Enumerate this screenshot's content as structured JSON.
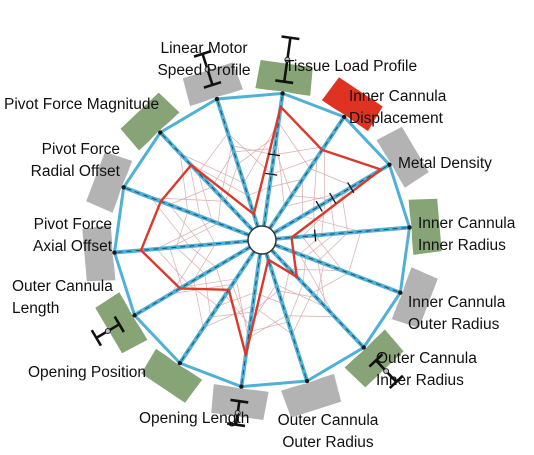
{
  "parameters": [
    {
      "id": "tissue-load-profile",
      "lines": [
        "Tissue Load Profile"
      ],
      "tab_color": "green"
    },
    {
      "id": "inner-cannula-displacement",
      "lines": [
        "Inner Cannula",
        "Displacement"
      ],
      "tab_color": "red"
    },
    {
      "id": "metal-density",
      "lines": [
        "Metal Density"
      ],
      "tab_color": "grey"
    },
    {
      "id": "inner-cannula-inner-radius",
      "lines": [
        "Inner Cannula",
        "Inner Radius"
      ],
      "tab_color": "green"
    },
    {
      "id": "inner-cannula-outer-radius",
      "lines": [
        "Inner Cannula",
        "Outer Radius"
      ],
      "tab_color": "grey"
    },
    {
      "id": "outer-cannula-inner-radius",
      "lines": [
        "Outer Cannula",
        "Inner Radius"
      ],
      "tab_color": "green"
    },
    {
      "id": "outer-cannula-outer-radius",
      "lines": [
        "Outer Cannula",
        "Outer Radius"
      ],
      "tab_color": "grey"
    },
    {
      "id": "opening-length",
      "lines": [
        "Opening Length"
      ],
      "tab_color": "grey"
    },
    {
      "id": "opening-position",
      "lines": [
        "Opening Position"
      ],
      "tab_color": "green"
    },
    {
      "id": "outer-cannula-length",
      "lines": [
        "Outer Cannula",
        "Length"
      ],
      "tab_color": "green"
    },
    {
      "id": "pivot-force-axial-offset",
      "lines": [
        "Pivot Force",
        "Axial Offset"
      ],
      "tab_color": "grey"
    },
    {
      "id": "pivot-force-radial-offset",
      "lines": [
        "Pivot Force",
        "Radial Offset"
      ],
      "tab_color": "grey"
    },
    {
      "id": "pivot-force-magnitude",
      "lines": [
        "Pivot Force Magnitude"
      ],
      "tab_color": "green"
    },
    {
      "id": "linear-motor-speed-profile",
      "lines": [
        "Linear Motor",
        "Speed Profile"
      ],
      "tab_color": "grey"
    }
  ],
  "colors": {
    "axis": "#4fb0d8",
    "axis_dark": "#1f4e63",
    "rim": "#4fb0d8",
    "tab_grey": "#b3b3b3",
    "tab_green": "#86a475",
    "tab_red": "#e03222",
    "highlight_line": "#d93a2b",
    "faint_line": "#d8a8a8",
    "label_text": "#111111"
  },
  "red_profile": [
    0.92,
    0.72,
    0.95,
    0.12,
    0.15,
    0.28,
    0.05,
    0.78,
    0.35,
    0.62,
    0.82,
    0.72,
    0.68,
    0.1
  ],
  "faint_profiles": [
    [
      0.8,
      0.55,
      0.7,
      0.2,
      0.4,
      0.5,
      0.3,
      0.45,
      0.6,
      0.4,
      0.55,
      0.5,
      0.8,
      0.35
    ],
    [
      0.6,
      0.3,
      0.5,
      0.45,
      0.25,
      0.35,
      0.55,
      0.6,
      0.3,
      0.7,
      0.35,
      0.65,
      0.45,
      0.6
    ],
    [
      0.4,
      0.65,
      0.35,
      0.3,
      0.55,
      0.2,
      0.4,
      0.3,
      0.5,
      0.55,
      0.7,
      0.3,
      0.6,
      0.75
    ],
    [
      0.7,
      0.2,
      0.6,
      0.55,
      0.35,
      0.6,
      0.25,
      0.55,
      0.4,
      0.3,
      0.45,
      0.8,
      0.3,
      0.5
    ],
    [
      0.3,
      0.45,
      0.25,
      0.65,
      0.6,
      0.45,
      0.65,
      0.4,
      0.7,
      0.5,
      0.25,
      0.4,
      0.7,
      0.25
    ],
    [
      0.55,
      0.75,
      0.45,
      0.35,
      0.2,
      0.7,
      0.5,
      0.65,
      0.25,
      0.6,
      0.6,
      0.25,
      0.35,
      0.65
    ]
  ],
  "tick_marks": [
    {
      "axis": 0,
      "fractions": [
        0.55,
        0.4
      ]
    },
    {
      "axis": 2,
      "fractions": [
        0.68,
        0.52,
        0.4
      ]
    },
    {
      "axis": 3,
      "fractions": [
        0.3
      ]
    }
  ],
  "range_bars": [
    {
      "axis": 0,
      "low": 1.08,
      "high": 1.38
    },
    {
      "axis": 5,
      "low": 1.12,
      "high": 1.32
    },
    {
      "axis": 7,
      "low": 1.1,
      "high": 1.26
    },
    {
      "axis": 9,
      "low": 1.12,
      "high": 1.3
    },
    {
      "axis": 13,
      "low": 1.1,
      "high": 1.32
    }
  ]
}
